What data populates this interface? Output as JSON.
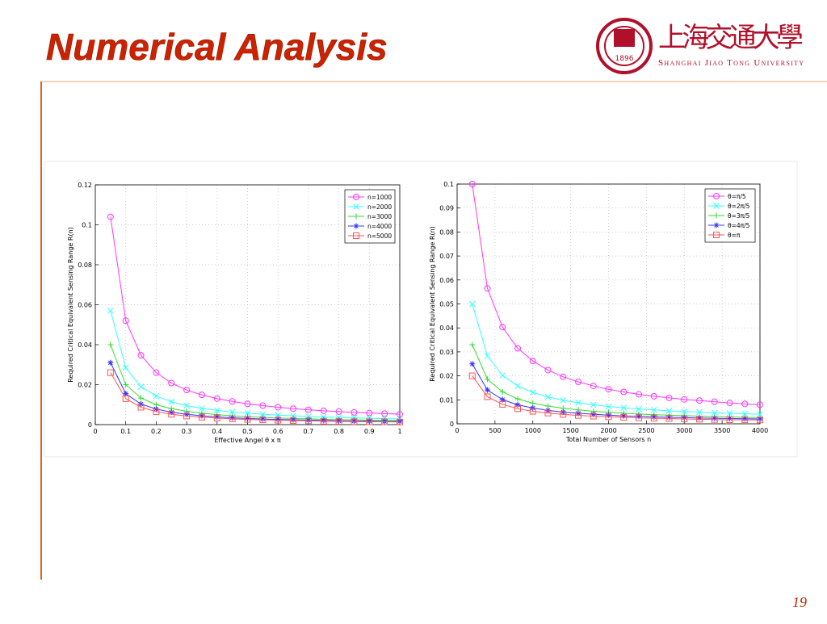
{
  "slide": {
    "title": "Numerical Analysis",
    "page_number": "19"
  },
  "logo": {
    "chinese_name": "上海交通大學",
    "english_name": "Shanghai Jiao Tong University",
    "year": "1896"
  },
  "chart_data": [
    {
      "type": "line",
      "x_label": "Effective Angel θ x π",
      "y_label": "Required Critical Equivalent Sensing Range R(n)",
      "x": [
        0.05,
        0.1,
        0.15,
        0.2,
        0.25,
        0.3,
        0.35,
        0.4,
        0.45,
        0.5,
        0.55,
        0.6,
        0.65,
        0.7,
        0.75,
        0.8,
        0.85,
        0.9,
        0.95,
        1
      ],
      "xlim": [
        0,
        1
      ],
      "xticks": [
        0,
        0.1,
        0.2,
        0.3,
        0.4,
        0.5,
        0.6,
        0.7,
        0.8,
        0.9,
        1
      ],
      "ylim": [
        0,
        0.12
      ],
      "yticks": [
        0,
        0.02,
        0.04,
        0.06,
        0.08,
        0.1,
        0.12
      ],
      "grid": true,
      "legend": "upper right",
      "series": [
        {
          "name": "n=1000",
          "color": "#ff33ff",
          "marker": "circle",
          "values": [
            0.104,
            0.052,
            0.0347,
            0.026,
            0.0208,
            0.0173,
            0.0149,
            0.013,
            0.0116,
            0.0104,
            0.0095,
            0.0087,
            0.008,
            0.0074,
            0.0069,
            0.0065,
            0.0061,
            0.0058,
            0.0055,
            0.0052
          ]
        },
        {
          "name": "n=2000",
          "color": "#33ffff",
          "marker": "x",
          "values": [
            0.057,
            0.0285,
            0.019,
            0.0143,
            0.0114,
            0.0095,
            0.0081,
            0.0071,
            0.0063,
            0.0057,
            0.0052,
            0.0048,
            0.0044,
            0.0041,
            0.0038,
            0.0036,
            0.0034,
            0.0032,
            0.003,
            0.0029
          ]
        },
        {
          "name": "n=3000",
          "color": "#33dd33",
          "marker": "plus",
          "values": [
            0.04,
            0.02,
            0.0133,
            0.01,
            0.008,
            0.0067,
            0.0057,
            0.005,
            0.0044,
            0.004,
            0.0036,
            0.0033,
            0.0031,
            0.0029,
            0.0027,
            0.0025,
            0.0024,
            0.0022,
            0.0021,
            0.002
          ]
        },
        {
          "name": "n=4000",
          "color": "#3333ff",
          "marker": "star",
          "values": [
            0.031,
            0.0155,
            0.0103,
            0.0078,
            0.0062,
            0.0052,
            0.0044,
            0.0039,
            0.0034,
            0.0031,
            0.0028,
            0.0026,
            0.0024,
            0.0022,
            0.0021,
            0.0019,
            0.0018,
            0.0017,
            0.0016,
            0.0016
          ]
        },
        {
          "name": "n=5000",
          "color": "#ff5555",
          "marker": "square",
          "values": [
            0.026,
            0.013,
            0.0087,
            0.0065,
            0.0052,
            0.0043,
            0.0037,
            0.0033,
            0.0029,
            0.0026,
            0.0024,
            0.0022,
            0.002,
            0.0019,
            0.0017,
            0.0016,
            0.0015,
            0.0014,
            0.0014,
            0.0013
          ]
        }
      ]
    },
    {
      "type": "line",
      "x_label": "Total Number of Sensors n",
      "y_label": "Required Critical Equivalent Sensing Range R(n)",
      "x": [
        200,
        400,
        600,
        800,
        1000,
        1200,
        1400,
        1600,
        1800,
        2000,
        2200,
        2400,
        2600,
        2800,
        3000,
        3200,
        3400,
        3600,
        3800,
        4000
      ],
      "xlim": [
        0,
        4000
      ],
      "xticks": [
        0,
        500,
        1000,
        1500,
        2000,
        2500,
        3000,
        3500,
        4000
      ],
      "ylim": [
        0,
        0.1
      ],
      "yticks": [
        0,
        0.01,
        0.02,
        0.03,
        0.04,
        0.05,
        0.06,
        0.07,
        0.08,
        0.09,
        0.1
      ],
      "grid": true,
      "legend": "upper right",
      "series": [
        {
          "name": "θ=π/5",
          "color": "#ff33ff",
          "marker": "circle",
          "values": [
            0.1,
            0.0565,
            0.0403,
            0.0315,
            0.0262,
            0.0224,
            0.0196,
            0.0175,
            0.0158,
            0.0144,
            0.0133,
            0.0123,
            0.0115,
            0.0108,
            0.0102,
            0.0097,
            0.0092,
            0.0087,
            0.0083,
            0.008
          ]
        },
        {
          "name": "θ=2π/5",
          "color": "#33ffff",
          "marker": "x",
          "values": [
            0.05,
            0.0283,
            0.0202,
            0.0158,
            0.0131,
            0.0112,
            0.0098,
            0.0088,
            0.0079,
            0.0072,
            0.0067,
            0.0062,
            0.0058,
            0.0054,
            0.0051,
            0.0049,
            0.0046,
            0.0044,
            0.0042,
            0.004
          ]
        },
        {
          "name": "θ=3π/5",
          "color": "#33dd33",
          "marker": "plus",
          "values": [
            0.033,
            0.0186,
            0.0133,
            0.0104,
            0.0086,
            0.0074,
            0.0065,
            0.0058,
            0.0052,
            0.0048,
            0.0044,
            0.0041,
            0.0038,
            0.0036,
            0.0034,
            0.0032,
            0.003,
            0.0029,
            0.0027,
            0.0026
          ]
        },
        {
          "name": "θ=4π/5",
          "color": "#3333ff",
          "marker": "star",
          "values": [
            0.025,
            0.0141,
            0.0101,
            0.0079,
            0.0066,
            0.0056,
            0.0049,
            0.0044,
            0.004,
            0.0036,
            0.0033,
            0.0031,
            0.0029,
            0.0027,
            0.0026,
            0.0024,
            0.0023,
            0.0022,
            0.0021,
            0.002
          ]
        },
        {
          "name": "θ=π",
          "color": "#ff5555",
          "marker": "square",
          "values": [
            0.02,
            0.0113,
            0.0081,
            0.0063,
            0.0052,
            0.0045,
            0.0039,
            0.0035,
            0.0032,
            0.0029,
            0.0027,
            0.0025,
            0.0023,
            0.0022,
            0.002,
            0.0019,
            0.0018,
            0.0017,
            0.0017,
            0.0016
          ]
        }
      ]
    }
  ]
}
